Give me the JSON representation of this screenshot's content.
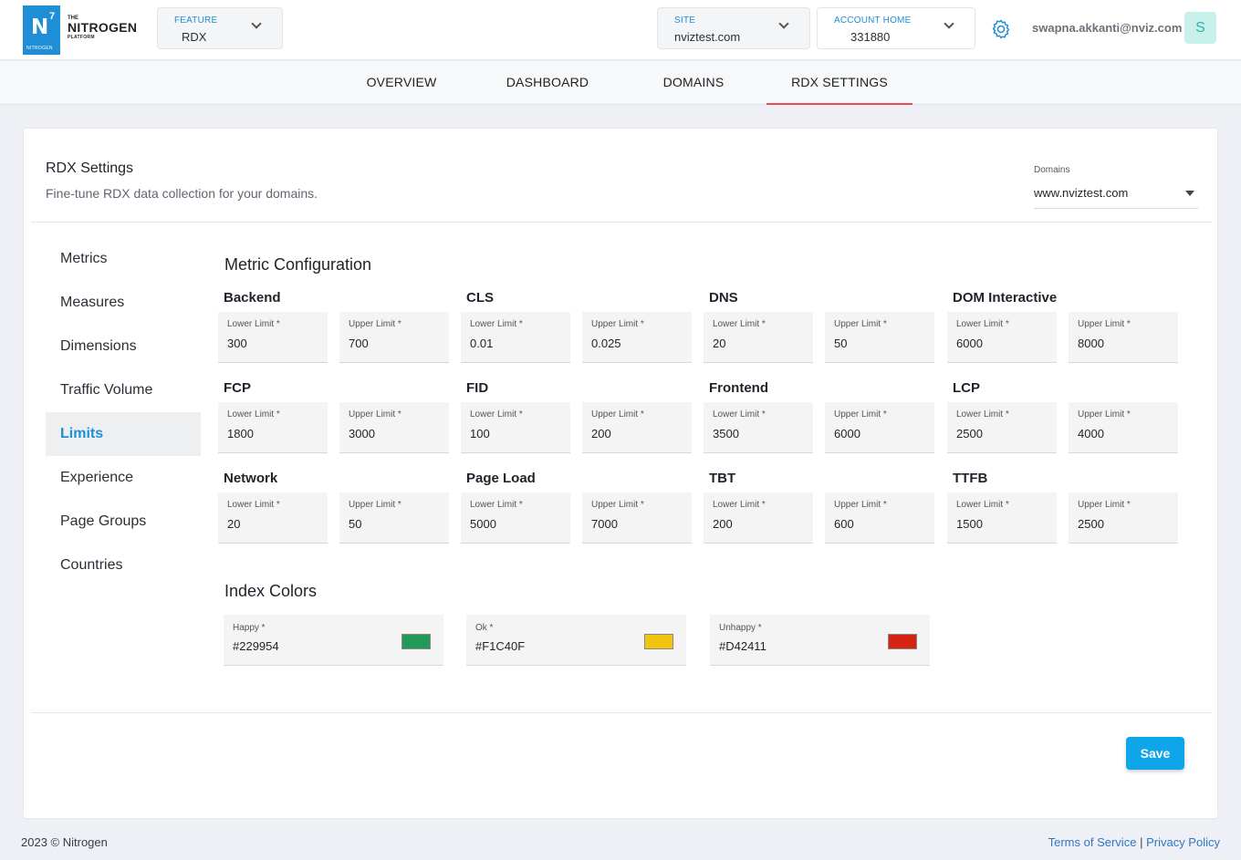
{
  "header": {
    "logo": {
      "letter": "N",
      "sup": "7",
      "small": "NITROGEN"
    },
    "brand": {
      "the": "THE",
      "name": "NITROGEN",
      "platform": "PLATFORM"
    },
    "feature": {
      "label": "FEATURE",
      "value": "RDX"
    },
    "site": {
      "label": "SITE",
      "value": "nviztest.com"
    },
    "account": {
      "label": "ACCOUNT HOME",
      "value": "331880"
    },
    "email": "swapna.akkanti@nviz.com",
    "avatar": "S"
  },
  "tabs": [
    {
      "label": "OVERVIEW"
    },
    {
      "label": "DASHBOARD"
    },
    {
      "label": "DOMAINS"
    },
    {
      "label": "RDX SETTINGS",
      "active": true
    }
  ],
  "card": {
    "title": "RDX Settings",
    "subtitle": "Fine-tune RDX data collection for your domains.",
    "domains": {
      "label": "Domains",
      "value": "www.nviztest.com"
    }
  },
  "sidebar": [
    {
      "label": "Metrics"
    },
    {
      "label": "Measures"
    },
    {
      "label": "Dimensions"
    },
    {
      "label": "Traffic Volume"
    },
    {
      "label": "Limits",
      "active": true
    },
    {
      "label": "Experience"
    },
    {
      "label": "Page Groups"
    },
    {
      "label": "Countries"
    }
  ],
  "metric_config": {
    "title": "Metric Configuration",
    "lower_label": "Lower Limit *",
    "upper_label": "Upper Limit *",
    "metrics": [
      {
        "name": "Backend",
        "lower": "300",
        "upper": "700"
      },
      {
        "name": "CLS",
        "lower": "0.01",
        "upper": "0.025"
      },
      {
        "name": "DNS",
        "lower": "20",
        "upper": "50"
      },
      {
        "name": "DOM Interactive",
        "lower": "6000",
        "upper": "8000"
      },
      {
        "name": "FCP",
        "lower": "1800",
        "upper": "3000"
      },
      {
        "name": "FID",
        "lower": "100",
        "upper": "200"
      },
      {
        "name": "Frontend",
        "lower": "3500",
        "upper": "6000"
      },
      {
        "name": "LCP",
        "lower": "2500",
        "upper": "4000"
      },
      {
        "name": "Network",
        "lower": "20",
        "upper": "50"
      },
      {
        "name": "Page Load",
        "lower": "5000",
        "upper": "7000"
      },
      {
        "name": "TBT",
        "lower": "200",
        "upper": "600"
      },
      {
        "name": "TTFB",
        "lower": "1500",
        "upper": "2500"
      }
    ]
  },
  "index_colors": {
    "title": "Index Colors",
    "items": [
      {
        "label": "Happy *",
        "value": "#229954",
        "color": "#229954"
      },
      {
        "label": "Ok *",
        "value": "#F1C40F",
        "color": "#F1C40F"
      },
      {
        "label": "Unhappy *",
        "value": "#D42411",
        "color": "#D42411"
      }
    ]
  },
  "save_label": "Save",
  "footer": {
    "copyright": "2023 © Nitrogen",
    "terms": "Terms of Service",
    "separator": "|",
    "privacy": "Privacy Policy"
  },
  "colors": {
    "accent": "#1e8fd6",
    "tab_active": "#e8495f",
    "save": "#0ea5e9"
  }
}
